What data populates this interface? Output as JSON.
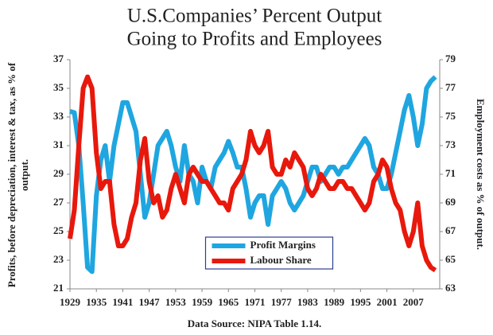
{
  "chart_data": {
    "type": "line",
    "title": [
      "U.S.Companies’ Percent Output",
      "Going to Profits and Employees"
    ],
    "ylabel": [
      "Profits, before depreciation, interest & tax, as % of",
      "output."
    ],
    "y2label": "Employment costs as % of output.",
    "note": "Data Source: NIPA Table 1.14.",
    "x": [
      1929,
      1930,
      1931,
      1932,
      1933,
      1934,
      1935,
      1936,
      1937,
      1938,
      1939,
      1940,
      1941,
      1942,
      1943,
      1944,
      1945,
      1946,
      1947,
      1948,
      1949,
      1950,
      1951,
      1952,
      1953,
      1954,
      1955,
      1956,
      1957,
      1958,
      1959,
      1960,
      1961,
      1962,
      1963,
      1964,
      1965,
      1966,
      1967,
      1968,
      1969,
      1970,
      1971,
      1972,
      1973,
      1974,
      1975,
      1976,
      1977,
      1978,
      1979,
      1980,
      1981,
      1982,
      1983,
      1984,
      1985,
      1986,
      1987,
      1988,
      1989,
      1990,
      1991,
      1992,
      1993,
      1994,
      1995,
      1996,
      1997,
      1998,
      1999,
      2000,
      2001,
      2002,
      2003,
      2004,
      2005,
      2006,
      2007,
      2008,
      2009,
      2010,
      2011,
      2012
    ],
    "series": [
      {
        "name": "Profit Margins",
        "color": "#1fa6e0",
        "axis": "y",
        "values": [
          33.4,
          33.3,
          31,
          27,
          22.5,
          22.2,
          27.5,
          30,
          31,
          28.5,
          31,
          32.5,
          34,
          34,
          33,
          32,
          29,
          26,
          27,
          29,
          31,
          31.5,
          32,
          31,
          29.5,
          28.5,
          31,
          29,
          28.5,
          27,
          29.5,
          28.5,
          28,
          29.5,
          30,
          30.5,
          31.3,
          30.5,
          29.5,
          29.5,
          28,
          26,
          27,
          27.5,
          27.5,
          25.5,
          27.5,
          28,
          28.5,
          28,
          27,
          26.5,
          27,
          27.5,
          28.5,
          29.5,
          29.5,
          28.5,
          29,
          29.5,
          29.5,
          29,
          29.5,
          29.5,
          30,
          30.5,
          31,
          31.5,
          31,
          29.5,
          29,
          28,
          28,
          29,
          30.5,
          32,
          33.5,
          34.5,
          33,
          31,
          32.5,
          35,
          35.5,
          35.8
        ]
      },
      {
        "name": "Labour Share",
        "color": "#e8180c",
        "axis": "y2",
        "values": [
          66.5,
          68.5,
          73,
          77,
          77.8,
          77,
          72.5,
          70,
          70.5,
          70.5,
          67.5,
          66,
          66,
          66.5,
          68,
          69,
          72,
          73.5,
          70.5,
          69,
          69.5,
          68,
          68.5,
          70,
          71,
          70,
          69,
          71,
          71.5,
          71,
          70.5,
          70.5,
          70,
          69.5,
          69,
          69,
          68.5,
          70,
          70.5,
          71,
          72,
          74,
          73,
          72.5,
          73,
          74,
          71.5,
          71,
          71,
          72,
          71.5,
          72.5,
          72,
          71.5,
          70,
          69.5,
          70,
          71,
          70.5,
          70,
          70,
          70.5,
          70.5,
          70,
          70,
          69.5,
          69,
          68.5,
          69,
          70.5,
          71,
          72,
          71.5,
          70,
          69,
          68.5,
          67,
          66,
          67,
          69,
          66,
          65,
          64.5,
          64.3
        ]
      }
    ],
    "xlim": [
      1929,
      2013
    ],
    "xticks": [
      1929,
      1935,
      1941,
      1947,
      1953,
      1959,
      1965,
      1971,
      1977,
      1983,
      1989,
      1995,
      2001,
      2007
    ],
    "ylim": [
      21,
      37
    ],
    "yticks": [
      21,
      23,
      25,
      27,
      29,
      31,
      33,
      35,
      37
    ],
    "y2lim": [
      63,
      79
    ],
    "y2ticks": [
      63,
      65,
      67,
      69,
      71,
      73,
      75,
      77,
      79
    ],
    "legend": "bottom-center"
  }
}
